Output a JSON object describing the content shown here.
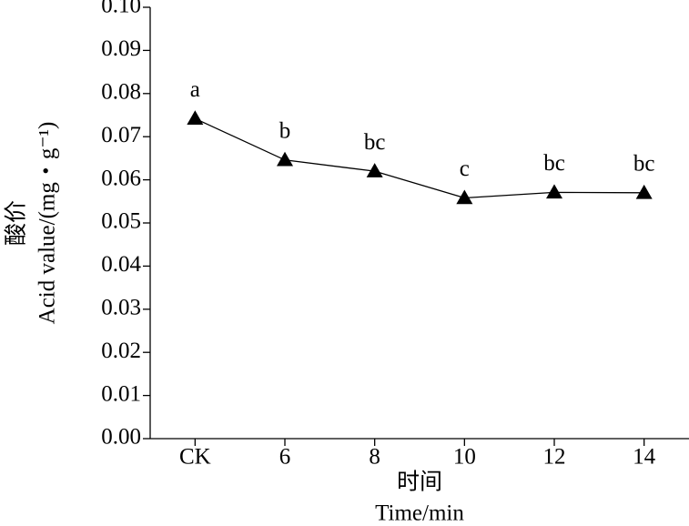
{
  "chart_data": {
    "type": "line",
    "y_title_zh": "酸价",
    "y_title": "Acid value/(mg・g⁻¹)",
    "x_title_zh": "时间",
    "x_title": "Time/min",
    "categories": [
      "CK",
      "6",
      "8",
      "10",
      "12",
      "14"
    ],
    "values": [
      0.0742,
      0.0646,
      0.062,
      0.0558,
      0.0571,
      0.057
    ],
    "annotations": [
      "a",
      "b",
      "bc",
      "c",
      "bc",
      "bc"
    ],
    "color": "#000000",
    "marker": "triangle",
    "ylim": [
      0,
      0.1
    ],
    "yticks": [
      {
        "value": 0,
        "label": "0.00"
      },
      {
        "value": 0.01,
        "label": "0.01"
      },
      {
        "value": 0.02,
        "label": "0.02"
      },
      {
        "value": 0.03,
        "label": "0.03"
      },
      {
        "value": 0.04,
        "label": "0.04"
      },
      {
        "value": 0.05,
        "label": "0.05"
      },
      {
        "value": 0.06,
        "label": "0.06"
      },
      {
        "value": 0.07,
        "label": "0.07"
      },
      {
        "value": 0.08,
        "label": "0.08"
      },
      {
        "value": 0.09,
        "label": "0.09"
      },
      {
        "value": 0.1,
        "label": "0.10"
      }
    ]
  }
}
